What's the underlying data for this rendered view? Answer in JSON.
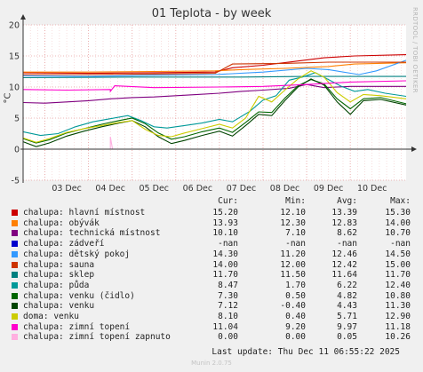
{
  "title": "01 Teplota - by week",
  "side_text": "RRDTOOL / TOBI OETIKER",
  "ylabel": "°C",
  "colors": {
    "background": "#f0f0f0",
    "plot_bg": "#ffffff",
    "grid": "#e8a0a0",
    "axis": "#333333"
  },
  "legend_header": {
    "cur": "Cur:",
    "min": "Min:",
    "avg": "Avg:",
    "max": "Max:"
  },
  "legend": [
    {
      "label": "chalupa: hlavní místnost",
      "color": "#cc0000",
      "cur": "15.20",
      "min": "12.10",
      "avg": "13.39",
      "max": "15.30"
    },
    {
      "label": "chalupa: obývák",
      "color": "#ff7f00",
      "cur": "13.93",
      "min": "12.30",
      "avg": "12.83",
      "max": "14.00"
    },
    {
      "label": "chalupa: technická místnost",
      "color": "#800080",
      "cur": "10.10",
      "min": "7.10",
      "avg": "8.62",
      "max": "10.70"
    },
    {
      "label": "chalupa: zádveří",
      "color": "#0000cc",
      "cur": "-nan",
      "min": "-nan",
      "avg": "-nan",
      "max": "-nan"
    },
    {
      "label": "chalupa: dětský pokoj",
      "color": "#3399ff",
      "cur": "14.30",
      "min": "11.20",
      "avg": "12.46",
      "max": "14.50"
    },
    {
      "label": "chalupa: sauna",
      "color": "#cc3300",
      "cur": "14.00",
      "min": "12.00",
      "avg": "12.42",
      "max": "15.00"
    },
    {
      "label": "chalupa: sklep",
      "color": "#008080",
      "cur": "11.70",
      "min": "11.50",
      "avg": "11.64",
      "max": "11.70"
    },
    {
      "label": "chalupa: půda",
      "color": "#009999",
      "cur": "8.47",
      "min": "1.70",
      "avg": "6.22",
      "max": "12.40"
    },
    {
      "label": "chalupa: venku (čidlo)",
      "color": "#006600",
      "cur": "7.30",
      "min": "0.50",
      "avg": "4.82",
      "max": "10.80"
    },
    {
      "label": "chalupa: venku",
      "color": "#004400",
      "cur": "7.12",
      "min": "-0.40",
      "avg": "4.43",
      "max": "11.30"
    },
    {
      "label": "doma: venku",
      "color": "#cccc00",
      "cur": "8.10",
      "min": "0.40",
      "avg": "5.71",
      "max": "12.90"
    },
    {
      "label": "chalupa: zimní topení",
      "color": "#ff00cc",
      "cur": "11.04",
      "min": "9.20",
      "avg": "9.97",
      "max": "11.18"
    },
    {
      "label": "chalupa: zimní topení zapnuto",
      "color": "#ffb0e0",
      "cur": "0.00",
      "min": "0.00",
      "avg": "0.05",
      "max": "10.26"
    }
  ],
  "last_update": "Last update: Thu Dec 11 06:55:22 2025",
  "munin": "Munin 2.0.75",
  "chart_data": {
    "type": "line",
    "title": "01 Teplota - by week",
    "ylabel": "°C",
    "ylim": [
      -5,
      20
    ],
    "yticks": [
      -5,
      0,
      5,
      10,
      15,
      20
    ],
    "xlim": [
      2.5,
      11.28
    ],
    "xticks": [
      {
        "x": 3,
        "label": "03 Dec"
      },
      {
        "x": 4,
        "label": "04 Dec"
      },
      {
        "x": 5,
        "label": "05 Dec"
      },
      {
        "x": 6,
        "label": "06 Dec"
      },
      {
        "x": 7,
        "label": "07 Dec"
      },
      {
        "x": 8,
        "label": "08 Dec"
      },
      {
        "x": 9,
        "label": "09 Dec"
      },
      {
        "x": 10,
        "label": "10 Dec"
      }
    ],
    "grid": true,
    "series": [
      {
        "name": "chalupa: hlavní místnost",
        "color": "#cc0000",
        "points": [
          [
            2.5,
            12.3
          ],
          [
            4,
            12.2
          ],
          [
            5.5,
            12.3
          ],
          [
            6.9,
            12.4
          ],
          [
            7.3,
            13.1
          ],
          [
            8,
            13.5
          ],
          [
            8.7,
            14.1
          ],
          [
            9.4,
            14.7
          ],
          [
            10.1,
            15.0
          ],
          [
            11.28,
            15.2
          ]
        ]
      },
      {
        "name": "chalupa: obývák",
        "color": "#ff7f00",
        "points": [
          [
            2.5,
            12.4
          ],
          [
            4,
            12.4
          ],
          [
            5.5,
            12.5
          ],
          [
            6.9,
            12.6
          ],
          [
            7.5,
            12.8
          ],
          [
            8.5,
            13.0
          ],
          [
            9.5,
            13.3
          ],
          [
            10.1,
            13.7
          ],
          [
            11.28,
            13.9
          ]
        ]
      },
      {
        "name": "chalupa: technická místnost",
        "color": "#800080",
        "points": [
          [
            2.5,
            7.5
          ],
          [
            3,
            7.4
          ],
          [
            3.5,
            7.6
          ],
          [
            4,
            7.8
          ],
          [
            4.5,
            8.1
          ],
          [
            5,
            8.3
          ],
          [
            5.5,
            8.4
          ],
          [
            6,
            8.6
          ],
          [
            6.5,
            8.8
          ],
          [
            7,
            9.0
          ],
          [
            7.5,
            9.3
          ],
          [
            8,
            9.5
          ],
          [
            8.6,
            9.8
          ],
          [
            9,
            10.4
          ],
          [
            9.4,
            9.9
          ],
          [
            10,
            10.1
          ],
          [
            11.28,
            10.1
          ]
        ]
      },
      {
        "name": "chalupa: dětský pokoj",
        "color": "#3399ff",
        "points": [
          [
            2.5,
            11.8
          ],
          [
            4,
            11.7
          ],
          [
            5.5,
            11.9
          ],
          [
            6.9,
            12.0
          ],
          [
            8,
            12.4
          ],
          [
            9,
            13.0
          ],
          [
            9.5,
            12.8
          ],
          [
            10.2,
            12.0
          ],
          [
            10.6,
            12.6
          ],
          [
            11.28,
            14.3
          ]
        ]
      },
      {
        "name": "chalupa: sauna",
        "color": "#cc3300",
        "points": [
          [
            2.5,
            12.0
          ],
          [
            4,
            12.0
          ],
          [
            5.5,
            12.1
          ],
          [
            6.9,
            12.2
          ],
          [
            7.3,
            13.7
          ],
          [
            8.5,
            13.8
          ],
          [
            9.5,
            14.0
          ],
          [
            11.28,
            14.0
          ]
        ]
      },
      {
        "name": "chalupa: sklep",
        "color": "#008080",
        "points": [
          [
            2.5,
            11.5
          ],
          [
            5,
            11.6
          ],
          [
            7.5,
            11.6
          ],
          [
            9,
            11.7
          ],
          [
            11.28,
            11.7
          ]
        ]
      },
      {
        "name": "chalupa: půda",
        "color": "#009999",
        "points": [
          [
            2.5,
            2.8
          ],
          [
            2.9,
            2.2
          ],
          [
            3.3,
            2.5
          ],
          [
            3.7,
            3.6
          ],
          [
            4.1,
            4.4
          ],
          [
            4.5,
            4.9
          ],
          [
            4.9,
            5.4
          ],
          [
            5.2,
            4.6
          ],
          [
            5.5,
            3.6
          ],
          [
            5.8,
            3.4
          ],
          [
            6.2,
            3.8
          ],
          [
            6.6,
            4.2
          ],
          [
            7.0,
            4.8
          ],
          [
            7.3,
            4.4
          ],
          [
            7.7,
            6.1
          ],
          [
            8.0,
            7.9
          ],
          [
            8.3,
            8.6
          ],
          [
            8.6,
            11.1
          ],
          [
            8.9,
            11.6
          ],
          [
            9.2,
            12.3
          ],
          [
            9.5,
            11.2
          ],
          [
            9.8,
            10.1
          ],
          [
            10.1,
            9.3
          ],
          [
            10.4,
            9.6
          ],
          [
            10.8,
            9.0
          ],
          [
            11.28,
            8.5
          ]
        ]
      },
      {
        "name": "chalupa: venku (čidlo)",
        "color": "#006600",
        "points": [
          [
            2.5,
            1.7
          ],
          [
            2.8,
            1.0
          ],
          [
            3.1,
            1.5
          ],
          [
            3.5,
            2.6
          ],
          [
            3.9,
            3.3
          ],
          [
            4.3,
            4.0
          ],
          [
            4.7,
            4.6
          ],
          [
            5.0,
            5.0
          ],
          [
            5.3,
            4.1
          ],
          [
            5.6,
            2.6
          ],
          [
            5.9,
            1.6
          ],
          [
            6.2,
            2.0
          ],
          [
            6.6,
            2.8
          ],
          [
            7.0,
            3.4
          ],
          [
            7.3,
            2.7
          ],
          [
            7.6,
            4.3
          ],
          [
            7.9,
            6.0
          ],
          [
            8.2,
            5.9
          ],
          [
            8.5,
            8.2
          ],
          [
            8.8,
            10.2
          ],
          [
            9.1,
            11.2
          ],
          [
            9.4,
            10.5
          ],
          [
            9.7,
            8.1
          ],
          [
            10.0,
            6.5
          ],
          [
            10.3,
            8.1
          ],
          [
            10.7,
            8.3
          ],
          [
            11.28,
            7.3
          ]
        ]
      },
      {
        "name": "chalupa: venku",
        "color": "#004400",
        "points": [
          [
            2.5,
            1.2
          ],
          [
            2.8,
            0.4
          ],
          [
            3.1,
            1.0
          ],
          [
            3.5,
            2.1
          ],
          [
            3.9,
            2.9
          ],
          [
            4.3,
            3.6
          ],
          [
            4.7,
            4.2
          ],
          [
            5.0,
            4.6
          ],
          [
            5.3,
            3.6
          ],
          [
            5.6,
            2.0
          ],
          [
            5.9,
            0.9
          ],
          [
            6.2,
            1.4
          ],
          [
            6.6,
            2.2
          ],
          [
            7.0,
            2.9
          ],
          [
            7.3,
            2.1
          ],
          [
            7.6,
            3.8
          ],
          [
            7.9,
            5.6
          ],
          [
            8.2,
            5.4
          ],
          [
            8.5,
            7.8
          ],
          [
            8.8,
            10.0
          ],
          [
            9.1,
            11.3
          ],
          [
            9.4,
            10.3
          ],
          [
            9.7,
            7.6
          ],
          [
            10.0,
            5.6
          ],
          [
            10.3,
            7.8
          ],
          [
            10.7,
            8.0
          ],
          [
            11.28,
            7.1
          ]
        ]
      },
      {
        "name": "doma: venku",
        "color": "#cccc00",
        "points": [
          [
            2.5,
            1.8
          ],
          [
            2.8,
            1.1
          ],
          [
            3.1,
            1.7
          ],
          [
            3.5,
            2.7
          ],
          [
            3.9,
            3.3
          ],
          [
            4.3,
            3.8
          ],
          [
            4.7,
            4.3
          ],
          [
            5.0,
            4.6
          ],
          [
            5.3,
            3.2
          ],
          [
            5.6,
            2.2
          ],
          [
            5.9,
            2.0
          ],
          [
            6.2,
            2.6
          ],
          [
            6.6,
            3.3
          ],
          [
            7.0,
            4.0
          ],
          [
            7.3,
            3.4
          ],
          [
            7.6,
            5.0
          ],
          [
            7.9,
            8.5
          ],
          [
            8.2,
            7.6
          ],
          [
            8.5,
            9.5
          ],
          [
            8.8,
            11.3
          ],
          [
            9.1,
            12.6
          ],
          [
            9.4,
            11.6
          ],
          [
            9.7,
            9.1
          ],
          [
            10.0,
            7.6
          ],
          [
            10.3,
            8.8
          ],
          [
            10.7,
            8.6
          ],
          [
            11.28,
            8.1
          ]
        ]
      },
      {
        "name": "chalupa: zimní topení",
        "color": "#ff00cc",
        "points": [
          [
            2.5,
            9.6
          ],
          [
            3.5,
            9.5
          ],
          [
            4.5,
            9.6
          ],
          [
            4.5,
            9.3
          ],
          [
            4.6,
            10.2
          ],
          [
            5.5,
            9.9
          ],
          [
            7,
            10.0
          ],
          [
            8,
            10.1
          ],
          [
            9,
            10.4
          ],
          [
            10,
            10.8
          ],
          [
            11.28,
            11.0
          ]
        ]
      },
      {
        "name": "chalupa: zimní topení zapnuto",
        "color": "#ffb0e0",
        "points": [
          [
            2.5,
            0
          ],
          [
            4.5,
            0
          ],
          [
            4.5,
            2.0
          ],
          [
            4.55,
            0
          ],
          [
            11.28,
            0
          ]
        ]
      }
    ]
  }
}
